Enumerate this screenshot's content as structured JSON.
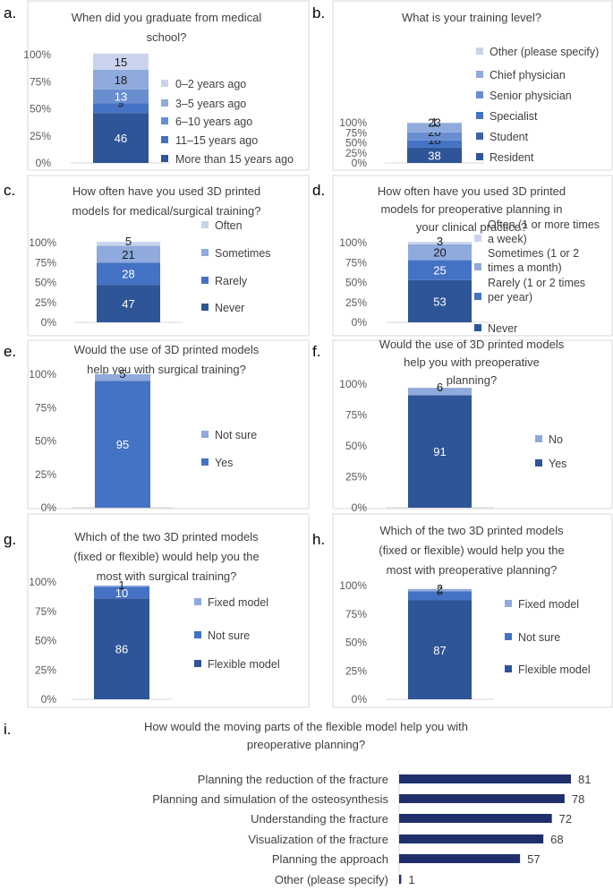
{
  "chart_data": [
    {
      "id": "a",
      "letter": "a.",
      "type": "bar",
      "stacked": true,
      "title": [
        "When did you graduate from medical",
        "school?"
      ],
      "yticks": [
        "100%",
        "75%",
        "50%",
        "25%",
        "0%"
      ],
      "series": [
        {
          "name": "More than 15 years ago",
          "value": 46,
          "color": "#2e5597"
        },
        {
          "name": "11–15 years ago",
          "value": 9,
          "color": "#4472c4"
        },
        {
          "name": "6–10 years ago",
          "value": 13,
          "color": "#698ed0"
        },
        {
          "name": "3–5 years ago",
          "value": 18,
          "color": "#8faadc"
        },
        {
          "name": "0–2 years ago",
          "value": 15,
          "color": "#c9d4ec"
        }
      ]
    },
    {
      "id": "b",
      "letter": "b.",
      "type": "bar",
      "stacked": true,
      "title": [
        "What is your training level?"
      ],
      "yticks": [
        "100%",
        "75%",
        "50%",
        "25%",
        "0%"
      ],
      "series": [
        {
          "name": "Resident",
          "value": 38,
          "color": "#2e5597"
        },
        {
          "name": "Student",
          "value": 0,
          "color": "#3a62ad"
        },
        {
          "name": "Specialist",
          "value": 18,
          "color": "#4472c4"
        },
        {
          "name": "Senior physician",
          "value": 20,
          "color": "#698ed0"
        },
        {
          "name": "Chief physician",
          "value": 23,
          "color": "#8faadc"
        },
        {
          "name": "Other (please specify)",
          "value": 1,
          "color": "#c9d4ec"
        }
      ]
    },
    {
      "id": "c",
      "letter": "c.",
      "type": "bar",
      "stacked": true,
      "title": [
        "How often have you used 3D printed",
        "models for medical/surgical training?"
      ],
      "yticks": [
        "100%",
        "75%",
        "50%",
        "25%",
        "0%"
      ],
      "series": [
        {
          "name": "Never",
          "value": 47,
          "color": "#2e5597"
        },
        {
          "name": "Rarely",
          "value": 28,
          "color": "#4472c4"
        },
        {
          "name": "Sometimes",
          "value": 21,
          "color": "#8faadc"
        },
        {
          "name": "Often",
          "value": 5,
          "color": "#c9d4ec"
        }
      ]
    },
    {
      "id": "d",
      "letter": "d.",
      "type": "bar",
      "stacked": true,
      "title": [
        "How often have you used 3D printed",
        "models for preoperative planning in",
        "your clinical practice?"
      ],
      "yticks": [
        "100%",
        "75%",
        "50%",
        "25%",
        "0%"
      ],
      "series": [
        {
          "name": "Never",
          "value": 53,
          "color": "#2e5597"
        },
        {
          "name": "Rarely (1 or 2 times per year)",
          "value": 25,
          "color": "#4472c4"
        },
        {
          "name": "Sometimes (1 or 2 times a month)",
          "value": 20,
          "color": "#8faadc"
        },
        {
          "name": "Often (1 or more times a week)",
          "value": 3,
          "color": "#c9d4ec"
        }
      ]
    },
    {
      "id": "e",
      "letter": "e.",
      "type": "bar",
      "stacked": true,
      "title": [
        "Would the use of 3D printed models",
        "help you with surgical training?"
      ],
      "yticks": [
        "100%",
        "75%",
        "50%",
        "25%",
        "0%"
      ],
      "series": [
        {
          "name": "Yes",
          "value": 95,
          "color": "#4472c4"
        },
        {
          "name": "Not sure",
          "value": 5,
          "color": "#8faadc"
        }
      ]
    },
    {
      "id": "f",
      "letter": "f.",
      "type": "bar",
      "stacked": true,
      "title": [
        "Would the use of 3D printed models",
        "help you with preoperative",
        "planning?"
      ],
      "yticks": [
        "100%",
        "75%",
        "50%",
        "25%",
        "0%"
      ],
      "series": [
        {
          "name": "Yes",
          "value": 91,
          "color": "#2e5597"
        },
        {
          "name": "No",
          "value": 6,
          "color": "#8faadc"
        }
      ]
    },
    {
      "id": "g",
      "letter": "g.",
      "type": "bar",
      "stacked": true,
      "title": [
        "Which of the two 3D printed models",
        "(fixed or flexible) would help you the",
        "most with surgical training?"
      ],
      "yticks": [
        "100%",
        "75%",
        "50%",
        "25%",
        "0%"
      ],
      "series": [
        {
          "name": "Flexible model",
          "value": 86,
          "color": "#2e5597"
        },
        {
          "name": "Not sure",
          "value": 10,
          "color": "#4472c4"
        },
        {
          "name": "Fixed model",
          "value": 1,
          "color": "#8faadc"
        }
      ]
    },
    {
      "id": "h",
      "letter": "h.",
      "type": "bar",
      "stacked": true,
      "title": [
        "Which of the two 3D printed models",
        "(fixed or flexible) would help you the",
        "most with preoperative planning?"
      ],
      "yticks": [
        "100%",
        "75%",
        "50%",
        "25%",
        "0%"
      ],
      "series": [
        {
          "name": "Flexible model",
          "value": 87,
          "color": "#2e5597"
        },
        {
          "name": "Not sure",
          "value": 8,
          "color": "#4472c4"
        },
        {
          "name": "Fixed model",
          "value": 2,
          "color": "#8faadc"
        }
      ]
    },
    {
      "id": "i",
      "letter": "i.",
      "type": "bar",
      "orientation": "horizontal",
      "title": [
        "How would the moving parts of the flexible model help you with",
        "preoperative planning?"
      ],
      "categories": [
        "Planning the reduction of the fracture",
        "Planning and simulation of the osteosynthesis",
        "Understanding the fracture",
        "Visualization of the fracture",
        "Planning the approach",
        "Other (please specify)"
      ],
      "values": [
        81,
        78,
        72,
        68,
        57,
        1
      ],
      "color": "#1f2f6b"
    }
  ]
}
